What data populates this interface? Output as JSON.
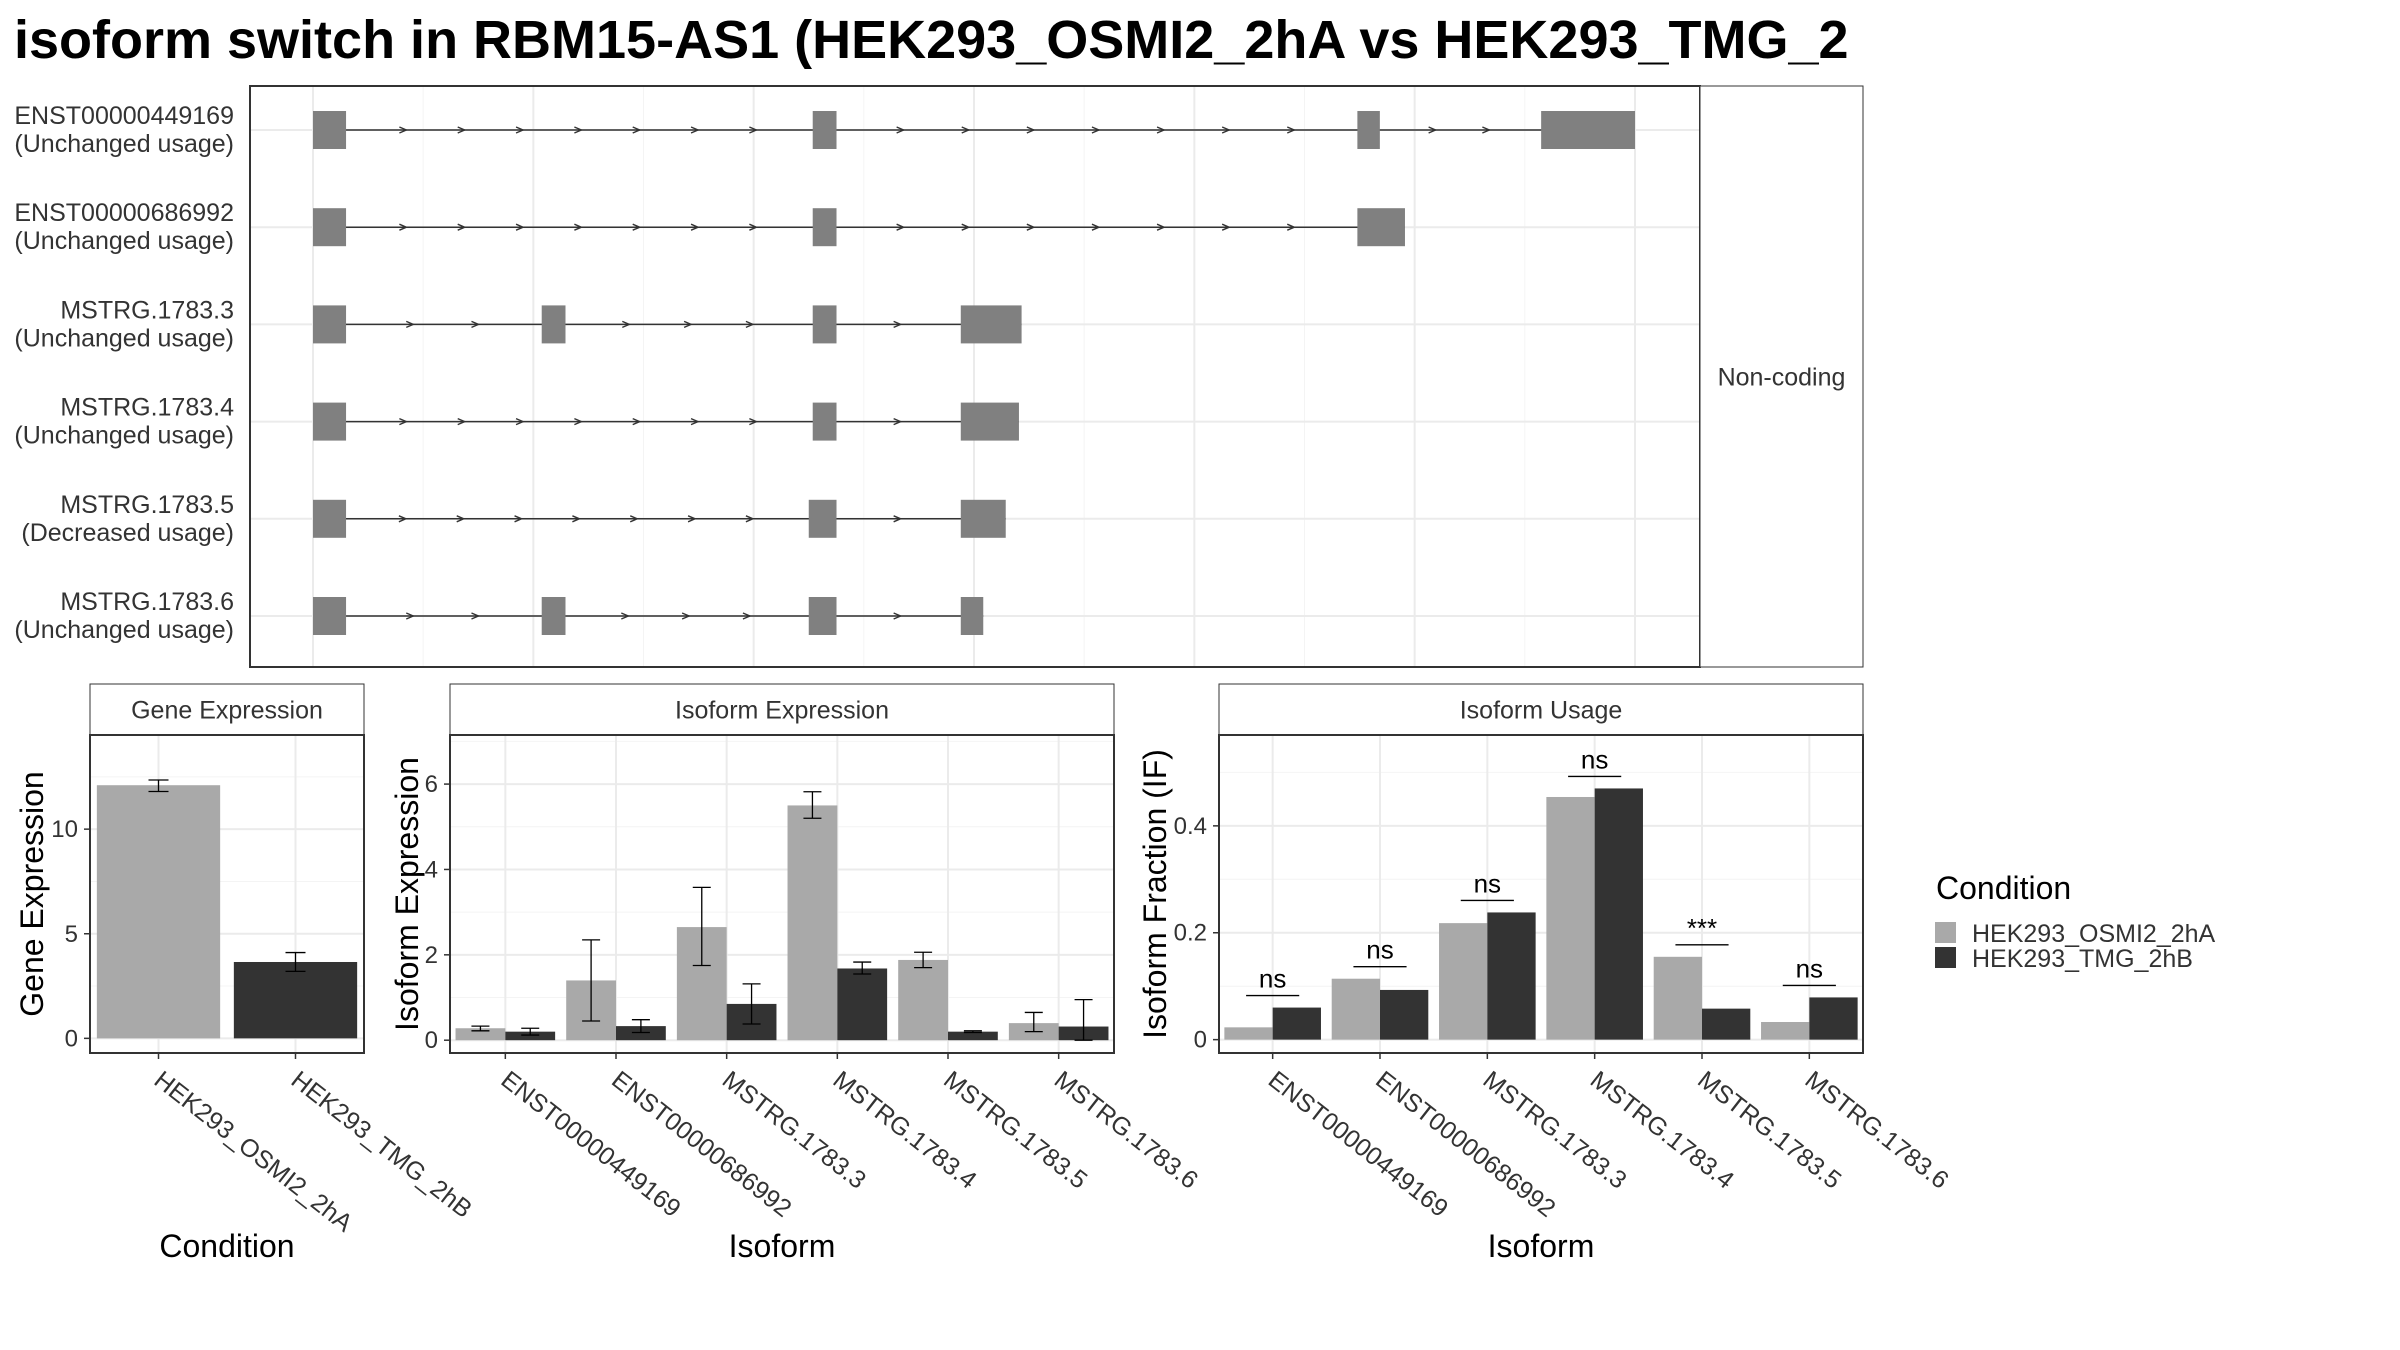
{
  "title": "isoform switch in RBM15-AS1 (HEK293_OSMI2_2hA vs HEK293_TMG_2",
  "colors": {
    "cond_a": "#A9A9A9",
    "cond_b": "#333333",
    "exon": "#808080",
    "grid": "#EBEBEB",
    "strip": "#FFFFFF"
  },
  "structure": {
    "facet_label": "Non-coding",
    "isoforms": [
      {
        "id": "ENST00000449169",
        "usage": "(Unchanged usage)",
        "exons": [
          [
            0.0,
            0.025
          ],
          [
            0.378,
            0.396
          ],
          [
            0.79,
            0.807
          ],
          [
            0.929,
            1.0
          ]
        ]
      },
      {
        "id": "ENST00000686992",
        "usage": "(Unchanged usage)",
        "exons": [
          [
            0.0,
            0.025
          ],
          [
            0.378,
            0.396
          ],
          [
            0.79,
            0.826
          ]
        ]
      },
      {
        "id": "MSTRG.1783.3",
        "usage": "(Unchanged usage)",
        "exons": [
          [
            0.0,
            0.025
          ],
          [
            0.173,
            0.191
          ],
          [
            0.378,
            0.396
          ],
          [
            0.49,
            0.536
          ]
        ]
      },
      {
        "id": "MSTRG.1783.4",
        "usage": "(Unchanged usage)",
        "exons": [
          [
            0.0,
            0.025
          ],
          [
            0.378,
            0.396
          ],
          [
            0.49,
            0.534
          ]
        ]
      },
      {
        "id": "MSTRG.1783.5",
        "usage": "(Decreased usage)",
        "exons": [
          [
            0.0,
            0.025
          ],
          [
            0.375,
            0.396
          ],
          [
            0.49,
            0.524
          ]
        ]
      },
      {
        "id": "MSTRG.1783.6",
        "usage": "(Unchanged usage)",
        "exons": [
          [
            0.0,
            0.025
          ],
          [
            0.173,
            0.191
          ],
          [
            0.375,
            0.396
          ],
          [
            0.49,
            0.507
          ]
        ]
      }
    ]
  },
  "chart_data": [
    {
      "type": "bar",
      "title": "Gene Expression",
      "xlabel": "Condition",
      "ylabel": "Gene Expression",
      "categories": [
        "HEK293_OSMI2_2hA",
        "HEK293_TMG_2hB"
      ],
      "values": [
        12.1,
        3.65
      ],
      "errors": [
        [
          11.8,
          12.35
        ],
        [
          3.2,
          4.1
        ]
      ],
      "ylim": [
        -0.7,
        14.5
      ],
      "yticks": [
        0,
        5,
        10
      ]
    },
    {
      "type": "bar",
      "title": "Isoform Expression",
      "xlabel": "Isoform",
      "ylabel": "Isoform Expression",
      "categories": [
        "ENST00000449169",
        "ENST00000686992",
        "MSTRG.1783.3",
        "MSTRG.1783.4",
        "MSTRG.1783.5",
        "MSTRG.1783.6"
      ],
      "series": [
        {
          "name": "HEK293_OSMI2_2hA",
          "values": [
            0.28,
            1.4,
            2.65,
            5.5,
            1.88,
            0.4
          ],
          "errors": [
            [
              0.22,
              0.33
            ],
            [
              0.45,
              2.35
            ],
            [
              1.75,
              3.58
            ],
            [
              5.2,
              5.82
            ],
            [
              1.7,
              2.06
            ],
            [
              0.2,
              0.65
            ]
          ]
        },
        {
          "name": "HEK293_TMG_2hB",
          "values": [
            0.2,
            0.33,
            0.85,
            1.68,
            0.2,
            0.32
          ],
          "errors": [
            [
              0.12,
              0.28
            ],
            [
              0.18,
              0.48
            ],
            [
              0.38,
              1.32
            ],
            [
              1.55,
              1.83
            ],
            [
              0.18,
              0.22
            ],
            [
              0.0,
              0.95
            ]
          ]
        }
      ],
      "ylim": [
        -0.3,
        7.15
      ],
      "yticks": [
        0,
        2,
        4,
        6
      ]
    },
    {
      "type": "bar",
      "title": "Isoform Usage",
      "xlabel": "Isoform",
      "ylabel": "Isoform Fraction (IF)",
      "categories": [
        "ENST00000449169",
        "ENST00000686992",
        "MSTRG.1783.3",
        "MSTRG.1783.4",
        "MSTRG.1783.5",
        "MSTRG.1783.6"
      ],
      "series": [
        {
          "name": "HEK293_OSMI2_2hA",
          "values": [
            0.023,
            0.114,
            0.218,
            0.454,
            0.155,
            0.033
          ]
        },
        {
          "name": "HEK293_TMG_2hB",
          "values": [
            0.06,
            0.093,
            0.238,
            0.47,
            0.058,
            0.079
          ]
        }
      ],
      "significance": [
        "ns",
        "ns",
        "ns",
        "ns",
        "***",
        "ns"
      ],
      "ylim": [
        -0.025,
        0.57
      ],
      "yticks": [
        0.0,
        0.2,
        0.4
      ]
    }
  ],
  "legend": {
    "title": "Condition",
    "items": [
      "HEK293_OSMI2_2hA",
      "HEK293_TMG_2hB"
    ]
  }
}
